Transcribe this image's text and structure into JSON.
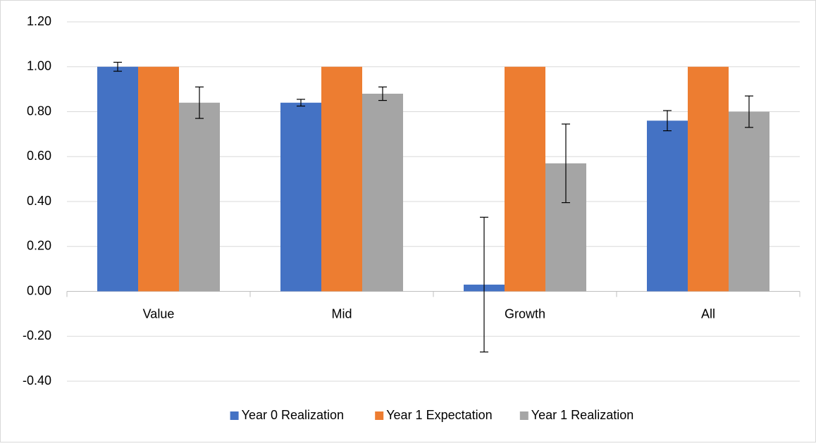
{
  "chart_data": {
    "type": "bar",
    "categories": [
      "Value",
      "Mid",
      "Growth",
      "All"
    ],
    "series": [
      {
        "name": "Year 0 Realization",
        "color": "#4472c4",
        "values": [
          1.0,
          0.84,
          0.03,
          0.76
        ],
        "errors": [
          0.02,
          0.015,
          0.3,
          0.045
        ]
      },
      {
        "name": "Year 1 Expectation",
        "color": "#ed7d31",
        "values": [
          1.0,
          1.0,
          1.0,
          1.0
        ]
      },
      {
        "name": "Year 1 Realization",
        "color": "#a5a5a5",
        "values": [
          0.84,
          0.88,
          0.57,
          0.8
        ],
        "errors": [
          0.07,
          0.03,
          0.175,
          0.07
        ]
      }
    ],
    "ylim": [
      -0.4,
      1.2
    ],
    "yticks": [
      {
        "value": -0.4,
        "label": "-0.40"
      },
      {
        "value": -0.2,
        "label": "-0.20"
      },
      {
        "value": 0,
        "label": "0.00"
      },
      {
        "value": 0.2,
        "label": "0.20"
      },
      {
        "value": 0.4,
        "label": "0.40"
      },
      {
        "value": 0.6,
        "label": "0.60"
      },
      {
        "value": 0.8,
        "label": "0.80"
      },
      {
        "value": 1.0,
        "label": "1.00"
      },
      {
        "value": 1.2,
        "label": "1.20"
      }
    ],
    "grid": true,
    "legend": "bottom"
  }
}
